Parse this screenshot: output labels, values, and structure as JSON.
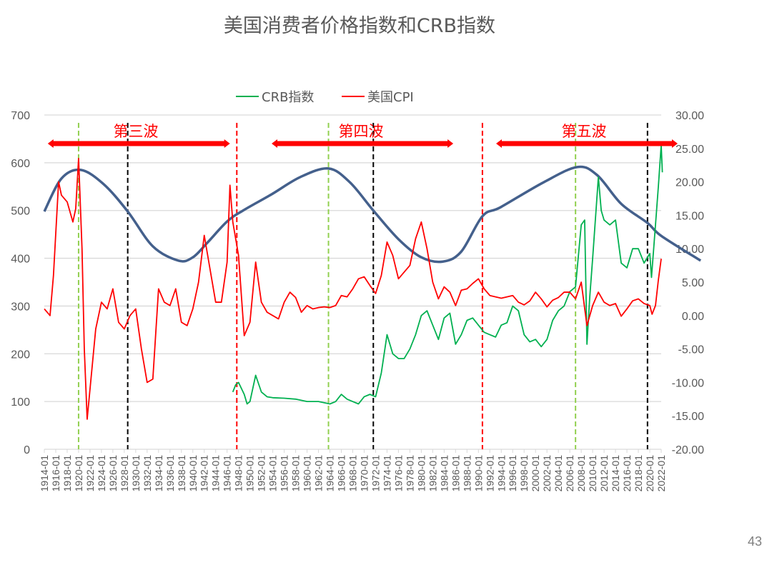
{
  "chart_data": {
    "type": "line",
    "title": "美国消费者价格指数和CRB指数",
    "xlabel": "",
    "ylabel_left": "",
    "ylabel_right": "",
    "xlim": [
      1914,
      2022
    ],
    "ylim_left": [
      0,
      700
    ],
    "ylim_right": [
      -20,
      30
    ],
    "left_ticks": [
      "0",
      "100",
      "200",
      "300",
      "400",
      "500",
      "600",
      "700"
    ],
    "right_ticks": [
      "-20.00",
      "-15.00",
      "-10.00",
      "-5.00",
      "0.00",
      "5.00",
      "10.00",
      "15.00",
      "20.00",
      "25.00",
      "30.00"
    ],
    "x_ticks": [
      "1914-01",
      "1916-01",
      "1918-01",
      "1920-01",
      "1922-01",
      "1924-01",
      "1926-01",
      "1928-01",
      "1930-01",
      "1932-01",
      "1934-01",
      "1936-01",
      "1938-01",
      "1940-01",
      "1942-01",
      "1944-01",
      "1946-01",
      "1948-01",
      "1950-01",
      "1952-01",
      "1954-01",
      "1956-01",
      "1958-01",
      "1960-01",
      "1962-01",
      "1964-01",
      "1966-01",
      "1968-01",
      "1970-01",
      "1972-01",
      "1974-01",
      "1976-01",
      "1978-01",
      "1980-01",
      "1982-01",
      "1984-01",
      "1986-01",
      "1988-01",
      "1990-01",
      "1992-01",
      "1994-01",
      "1996-01",
      "1998-01",
      "2000-01",
      "2002-01",
      "2004-01",
      "2006-01",
      "2008-01",
      "2010-01",
      "2012-01",
      "2014-01",
      "2016-01",
      "2018-01",
      "2020-01",
      "2022-01"
    ],
    "grid": true,
    "legend_position": "top",
    "series": [
      {
        "name": "CRB指数",
        "axis": "left",
        "color": "#00b050",
        "x": [
          1947,
          1947.5,
          1948,
          1949,
          1949.5,
          1950,
          1951,
          1952,
          1953,
          1954,
          1956,
          1958,
          1960,
          1962,
          1964,
          1965,
          1966,
          1967,
          1968,
          1969,
          1970,
          1971,
          1972,
          1973,
          1974,
          1975,
          1976,
          1977,
          1978,
          1979,
          1980,
          1981,
          1982,
          1983,
          1984,
          1985,
          1986,
          1987,
          1988,
          1989,
          1990,
          1991,
          1992,
          1993,
          1994,
          1995,
          1996,
          1997,
          1998,
          1999,
          2000,
          2001,
          2002,
          2003,
          2004,
          2005,
          2006,
          2007,
          2008,
          2008.6,
          2009,
          2009.5,
          2010,
          2011,
          2011.5,
          2012,
          2013,
          2014,
          2015,
          2016,
          2017,
          2018,
          2019,
          2020,
          2020.3,
          2021,
          2021.5,
          2022,
          2022.2
        ],
        "values": [
          120,
          135,
          140,
          115,
          95,
          100,
          155,
          120,
          110,
          108,
          107,
          105,
          100,
          100,
          95,
          100,
          115,
          105,
          100,
          95,
          110,
          115,
          110,
          160,
          240,
          200,
          190,
          190,
          210,
          240,
          280,
          290,
          260,
          230,
          275,
          285,
          220,
          240,
          270,
          275,
          260,
          245,
          240,
          235,
          260,
          265,
          300,
          290,
          240,
          225,
          230,
          215,
          230,
          270,
          290,
          300,
          330,
          340,
          470,
          480,
          220,
          320,
          400,
          570,
          500,
          480,
          470,
          480,
          390,
          380,
          420,
          420,
          390,
          410,
          360,
          470,
          550,
          637,
          580
        ]
      },
      {
        "name": "美国CPI",
        "axis": "right",
        "color": "#ff0000",
        "x": [
          1914,
          1915,
          1915.6,
          1916.5,
          1917,
          1918,
          1919,
          1919.5,
          1920,
          1920.6,
          1921,
          1921.5,
          1922,
          1923,
          1924,
          1925,
          1926,
          1927,
          1928,
          1929,
          1930,
          1931,
          1932,
          1933,
          1934,
          1935,
          1936,
          1937,
          1938,
          1939,
          1940,
          1941,
          1942,
          1943,
          1944,
          1945,
          1946,
          1946.5,
          1947,
          1948,
          1949,
          1950,
          1951,
          1952,
          1953,
          1954,
          1955,
          1956,
          1957,
          1958,
          1959,
          1960,
          1961,
          1962,
          1963,
          1964,
          1965,
          1966,
          1967,
          1968,
          1969,
          1970,
          1971,
          1972,
          1973,
          1974,
          1975,
          1976,
          1977,
          1978,
          1979,
          1980,
          1981,
          1982,
          1983,
          1984,
          1985,
          1986,
          1987,
          1988,
          1989,
          1990,
          1991,
          1992,
          1993,
          1994,
          1995,
          1996,
          1997,
          1998,
          1999,
          2000,
          2001,
          2002,
          2003,
          2004,
          2005,
          2006,
          2007,
          2008,
          2009,
          2010,
          2011,
          2012,
          2013,
          2014,
          2015,
          2016,
          2017,
          2018,
          2019,
          2020,
          2020.4,
          2021,
          2021.5,
          2022
        ],
        "values": [
          1,
          0,
          6,
          20,
          18,
          17,
          14,
          16,
          23.5,
          10,
          -5,
          -15.5,
          -11,
          -2,
          2,
          1,
          4,
          -1,
          -2,
          0,
          1,
          -5,
          -10,
          -9.5,
          4,
          2,
          1.5,
          4,
          -1,
          -1.5,
          1,
          5,
          12,
          7,
          2,
          2,
          8,
          19.5,
          14,
          9,
          -3,
          -1,
          8,
          2,
          0.5,
          0,
          -0.5,
          2,
          3.5,
          2.7,
          0.5,
          1.5,
          1,
          1.2,
          1.3,
          1.2,
          1.5,
          3,
          2.8,
          4,
          5.5,
          5.8,
          4.5,
          3.3,
          6,
          11,
          9,
          5.5,
          6.5,
          7.5,
          11.5,
          14,
          10,
          5,
          2.5,
          4.3,
          3.5,
          1.5,
          3.8,
          4,
          4.8,
          5.5,
          4,
          3,
          2.8,
          2.6,
          2.8,
          3,
          2,
          1.6,
          2.2,
          3.5,
          2.5,
          1.3,
          2.3,
          2.7,
          3.5,
          3.5,
          2.5,
          5,
          -1.5,
          1.5,
          3.5,
          2,
          1.5,
          1.8,
          -0.1,
          1,
          2.2,
          2.5,
          1.8,
          1.5,
          0.2,
          1.5,
          5.3,
          8.5
        ]
      },
      {
        "name": "",
        "axis": "left",
        "color": "#44608c",
        "x": [
          1914,
          1917,
          1920.4,
          1924.4,
          1928.6,
          1933,
          1937.5,
          1940,
          1942.5,
          1946,
          1948.8,
          1953.8,
          1958.8,
          1963.75,
          1967.5,
          1971.6,
          1976,
          1980,
          1983.75,
          1987,
          1990.7,
          1993.9,
          2001.4,
          2007.3,
          2010.8,
          2015,
          2019.6,
          2022,
          2028.9
        ],
        "values": [
          498,
          567,
          585,
          555,
          498,
          425,
          395,
          402,
          432,
          477,
          500,
          534,
          570,
          588,
          559,
          500,
          440,
          402,
          393,
          414,
          488,
          507,
          559,
          591,
          574,
          514,
          474,
          447,
          395
        ]
      }
    ],
    "vertical_markers": [
      {
        "x": 1920,
        "color": "#92d050"
      },
      {
        "x": 1928.6,
        "color": "#000000"
      },
      {
        "x": 1947.7,
        "color": "#ff0000"
      },
      {
        "x": 1963.75,
        "color": "#92d050"
      },
      {
        "x": 1971.6,
        "color": "#000000"
      },
      {
        "x": 1990.7,
        "color": "#ff0000"
      },
      {
        "x": 2007,
        "color": "#92d050"
      },
      {
        "x": 2019.6,
        "color": "#000000"
      }
    ],
    "annotations": [
      {
        "label": "第三波",
        "from": 1914.6,
        "to": 1946.5
      },
      {
        "label": "第四波",
        "from": 1953.8,
        "to": 1985.6
      },
      {
        "label": "第五波",
        "from": 2018.6,
        "to": 2023.0
      }
    ]
  },
  "page_number": "43"
}
